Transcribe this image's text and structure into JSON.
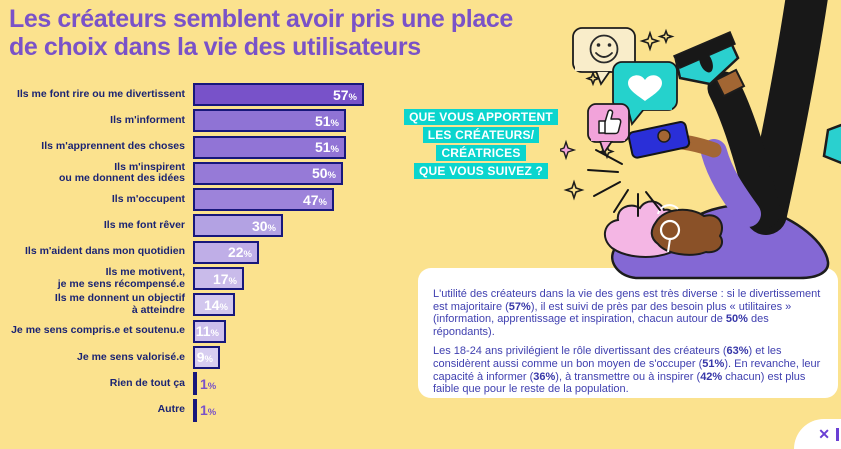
{
  "page": {
    "background_color": "#fbe28e"
  },
  "title": {
    "text": "Les créateurs semblent avoir pris une place\nde choix dans la vie des utilisateurs",
    "color": "#7a52c8"
  },
  "question_block": {
    "lines": [
      "QUE VOUS APPORTENT",
      "LES CRÉATEURS/",
      "CRÉATRICES",
      "QUE VOUS SUIVEZ ?"
    ],
    "background_color": "#0bd5ce",
    "text_color": "#ffffff"
  },
  "chart_data": {
    "type": "bar",
    "orientation": "horizontal",
    "title": "Que vous apportent les créateurs/créatrices que vous suivez ?",
    "unit": "%",
    "xlim": [
      0,
      60
    ],
    "categories": [
      "Ils me font rire ou me divertissent",
      "Ils m'informent",
      "Ils m'apprennent des choses",
      "Ils m'inspirent\nou me donnent des idées",
      "Ils m'occupent",
      "Ils me font rêver",
      "Ils m'aident dans mon quotidien",
      "Ils me motivent,\nje me sens récompensé.e",
      "Ils me donnent un objectif\nà atteindre",
      "Je me sens compris.e et soutenu.e",
      "Je me sens valorisé.e",
      "Rien de tout ça",
      "Autre"
    ],
    "values": [
      57,
      51,
      51,
      50,
      47,
      30,
      22,
      17,
      14,
      11,
      9,
      1,
      1
    ],
    "bar_colors": [
      "#7852c9",
      "#8f73d5",
      "#9174d6",
      "#967ad7",
      "#9d83da",
      "#b3a2e3",
      "#bfaee7",
      "#c9bbea",
      "#d2c7ee",
      "#cdbfec",
      "#d7cdf0",
      "#ffffff",
      "#ffffff"
    ],
    "bar_border_color": "#17177b",
    "value_label_color_inside": "#ffffff",
    "value_label_color_outside": "#7a52c8",
    "category_label_color": "#1b2473"
  },
  "infobox": {
    "background_color": "#ffffff",
    "text_color": "#4040b0",
    "paragraphs": [
      [
        {
          "t": "L'utilité des créateurs dans la vie des gens est très diverse : si le divertissement est majoritaire ("
        },
        {
          "t": "57%",
          "b": true
        },
        {
          "t": "), il est suivi de près par des besoin plus « utilitaires » (information, apprentissage et inspiration, chacun autour de "
        },
        {
          "t": "50%",
          "b": true
        },
        {
          "t": " des répondants)."
        }
      ],
      [
        {
          "t": "Les 18-24 ans privilégient le rôle divertissant des créateurs ("
        },
        {
          "t": "63%",
          "b": true
        },
        {
          "t": ") et les considèrent aussi comme un bon moyen de s'occuper ("
        },
        {
          "t": "51%",
          "b": true
        },
        {
          "t": "). En revanche, leur capacité à informer ("
        },
        {
          "t": "36%",
          "b": true
        },
        {
          "t": "), à transmettre ou à inspirer ("
        },
        {
          "t": "42%",
          "b": true
        },
        {
          "t": " chacun) est plus faible que pour le reste de la population."
        }
      ]
    ]
  },
  "illustration": {
    "icons": [
      "smiley-bubble-icon",
      "heart-bubble-icon",
      "thumbs-up-bubble-icon",
      "sparkle-icon",
      "phone-icon",
      "light-rays-icon",
      "person-illustration"
    ],
    "colors": {
      "bubble_cream": "#f9edca",
      "bubble_teal": "#25d2cc",
      "bubble_pink": "#f2a3da",
      "skin": "#a26633",
      "hair": "#8a5128",
      "top_purple": "#8468d4",
      "pants_black": "#181818",
      "shoe_teal": "#2ad0cf",
      "phone_blue": "#2a2fd8",
      "pillow_pink": "#f4b6e4",
      "outline": "#1c1c1c"
    }
  },
  "corner": {
    "close_label": "✕",
    "fragment": "|"
  }
}
